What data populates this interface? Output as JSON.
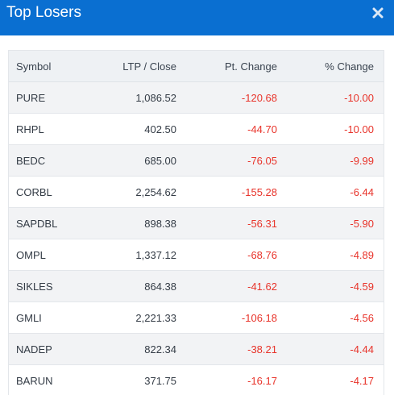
{
  "header": {
    "title": "Top Losers",
    "close_icon": "close-icon"
  },
  "table": {
    "columns": [
      "Symbol",
      "LTP / Close",
      "Pt. Change",
      "% Change"
    ],
    "rows": [
      {
        "symbol": "PURE",
        "ltp": "1,086.52",
        "pt_change": "-120.68",
        "pct_change": "-10.00"
      },
      {
        "symbol": "RHPL",
        "ltp": "402.50",
        "pt_change": "-44.70",
        "pct_change": "-10.00"
      },
      {
        "symbol": "BEDC",
        "ltp": "685.00",
        "pt_change": "-76.05",
        "pct_change": "-9.99"
      },
      {
        "symbol": "CORBL",
        "ltp": "2,254.62",
        "pt_change": "-155.28",
        "pct_change": "-6.44"
      },
      {
        "symbol": "SAPDBL",
        "ltp": "898.38",
        "pt_change": "-56.31",
        "pct_change": "-5.90"
      },
      {
        "symbol": "OMPL",
        "ltp": "1,337.12",
        "pt_change": "-68.76",
        "pct_change": "-4.89"
      },
      {
        "symbol": "SIKLES",
        "ltp": "864.38",
        "pt_change": "-41.62",
        "pct_change": "-4.59"
      },
      {
        "symbol": "GMLI",
        "ltp": "2,221.33",
        "pt_change": "-106.18",
        "pct_change": "-4.56"
      },
      {
        "symbol": "NADEP",
        "ltp": "822.34",
        "pt_change": "-38.21",
        "pct_change": "-4.44"
      },
      {
        "symbol": "BARUN",
        "ltp": "371.75",
        "pt_change": "-16.17",
        "pct_change": "-4.17"
      }
    ]
  },
  "colors": {
    "header_bg": "#0a6fd1",
    "negative": "#e8332a"
  }
}
